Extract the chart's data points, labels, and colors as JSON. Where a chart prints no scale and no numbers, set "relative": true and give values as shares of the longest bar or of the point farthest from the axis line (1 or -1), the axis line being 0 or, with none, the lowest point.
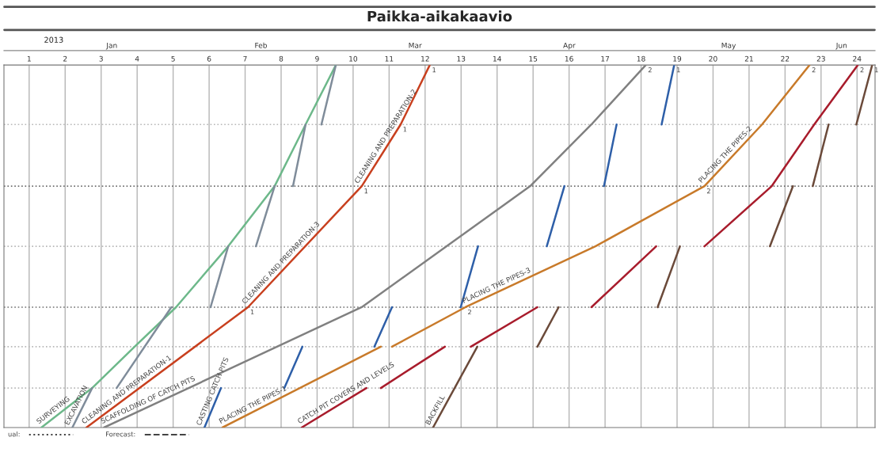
{
  "chart_data": {
    "type": "line",
    "title": "Paikka-aikakaavio",
    "relative": true,
    "legend": false,
    "grid": "x",
    "line_style": "solid",
    "xlim": [
      0.3,
      24.5
    ],
    "xticks": [
      1,
      2,
      3,
      4,
      5,
      6,
      7,
      8,
      9,
      10,
      11,
      12,
      13,
      14,
      15,
      16,
      17,
      18,
      19,
      20,
      21,
      22,
      23,
      24
    ],
    "x2lim": [
      "2012-12-26",
      "2013-06-13T12:00"
    ],
    "x2ticks": [
      {
        "value": "2013-01-16",
        "label": "Jan"
      },
      {
        "value": "2013-02-14",
        "label": "Feb"
      },
      {
        "value": "2013-03-16",
        "label": "Mar"
      },
      {
        "value": "2013-04-15",
        "label": "Apr"
      },
      {
        "value": "2013-05-16",
        "label": "May"
      },
      {
        "value": "2013-06-07",
        "label": "Jun"
      }
    ],
    "series": [
      {
        "color": "#6db88a",
        "x": [
          1.34,
          2.75,
          3.93,
          5.08,
          6.53,
          7.82,
          8.68,
          9.52
        ],
        "values": [
          0,
          0.109,
          0.223,
          0.332,
          0.5,
          0.666,
          0.836,
          1
        ]
      },
      {
        "color": "#7f8c9a",
        "x": [
          2.2,
          2.75,
          null,
          3.43,
          4.95,
          null,
          6.04,
          6.53,
          null,
          7.3,
          7.82,
          null,
          8.33,
          8.68,
          null,
          9.12,
          9.52
        ],
        "values": [
          0,
          0.109,
          null,
          0.109,
          0.332,
          null,
          0.332,
          0.5,
          null,
          0.5,
          0.666,
          null,
          0.666,
          0.836,
          null,
          0.836,
          1
        ]
      },
      {
        "color": "#c8401f",
        "x": [
          2.59,
          7.08,
          10.24,
          11.32,
          12.13
        ],
        "values": [
          0,
          0.332,
          0.666,
          0.836,
          1
        ]
      },
      {
        "color": "#808080",
        "x": [
          3.08,
          10.24,
          14.92,
          16.62,
          18.13
        ],
        "values": [
          0,
          0.332,
          0.666,
          0.836,
          1
        ]
      },
      {
        "color": "#2e5fa8",
        "x": [
          5.87,
          6.33,
          null,
          8.09,
          8.59,
          null,
          10.59,
          11.08,
          null,
          12.99,
          13.47,
          null,
          15.38,
          15.87,
          null,
          16.97,
          17.32,
          null,
          18.57,
          18.92
        ],
        "values": [
          0,
          0.109,
          null,
          0.109,
          0.223,
          null,
          0.223,
          0.332,
          null,
          0.332,
          0.5,
          null,
          0.5,
          0.666,
          null,
          0.666,
          0.836,
          null,
          0.836,
          1
        ]
      },
      {
        "color": "#c87a2a",
        "x": [
          6.37,
          10.77,
          null,
          11.08,
          13.12,
          16.73,
          19.76,
          21.36,
          22.68
        ],
        "values": [
          0,
          0.223,
          null,
          0.223,
          0.332,
          0.5,
          0.666,
          0.836,
          1
        ]
      },
      {
        "color": "#a81c2c",
        "x": [
          8.57,
          10.37,
          null,
          10.77,
          12.55,
          null,
          13.27,
          15.12,
          null,
          16.62,
          18.42,
          null,
          19.76,
          21.63,
          22.81,
          24.02
        ],
        "values": [
          0,
          0.109,
          null,
          0.109,
          0.223,
          null,
          0.223,
          0.332,
          null,
          0.332,
          0.5,
          null,
          0.5,
          0.666,
          0.836,
          1
        ]
      },
      {
        "color": "#6b4a3a",
        "x": [
          12.22,
          13.45,
          null,
          15.12,
          15.71,
          null,
          18.46,
          19.08,
          null,
          21.58,
          22.22,
          null,
          22.77,
          23.21,
          null,
          23.98,
          24.42
        ],
        "values": [
          0,
          0.223,
          null,
          0.223,
          0.332,
          null,
          0.332,
          0.5,
          null,
          0.5,
          0.666,
          null,
          0.666,
          0.836,
          null,
          0.836,
          1
        ]
      }
    ],
    "ref_lines": [
      {
        "axis": "y",
        "value": 0.109,
        "color": "#b8b8b8",
        "line_style": "dotted"
      },
      {
        "axis": "y",
        "value": 0.223,
        "color": "#b8b8b8",
        "line_style": "dotted"
      },
      {
        "axis": "y",
        "value": 0.332,
        "color": "#707070",
        "line_style": "dotted"
      },
      {
        "axis": "y",
        "value": 0.5,
        "color": "#b8b8b8",
        "line_style": "dotted"
      },
      {
        "axis": "y",
        "value": 0.666,
        "color": "#707070",
        "line_style": "dotted"
      },
      {
        "axis": "y",
        "value": 0.836,
        "color": "#b8b8b8",
        "line_style": "dotted"
      }
    ],
    "annotations": [
      "2013",
      "ual:",
      "Forecast:",
      {
        "text": "SURVEYING",
        "x": 1.34,
        "y": 0
      },
      {
        "text": "EXCAVATION",
        "x": 2.2,
        "y": 0
      },
      {
        "text": "CLEANING AND PREPARATION-1",
        "x": 2.59,
        "y": 0
      },
      {
        "text": "SCAFFOLDING OF CATCH PITS",
        "x": 3.08,
        "y": 0
      },
      {
        "text": "CASTING CATCH PITS",
        "x": 5.87,
        "y": 0
      },
      {
        "text": "PLACING THE PIPES-1",
        "x": 6.37,
        "y": 0
      },
      {
        "text": "CATCH PIT COVERS AND LEVELS",
        "x": 8.57,
        "y": 0
      },
      {
        "text": "BACKFILL",
        "x": 12.22,
        "y": 0
      },
      {
        "text": "CLEANING AND PREPARATION-3",
        "x": 7.08,
        "y": 0.332
      },
      {
        "text": "CLEANING AND PREPARATION-2",
        "x": 10.24,
        "y": 0.666
      },
      {
        "text": "PLACING THE PIPES-3",
        "x": 13.12,
        "y": 0.332
      },
      {
        "text": "PLACING THE PIPES-2",
        "x": 19.76,
        "y": 0.666
      },
      {
        "text": "1",
        "x": 7.08,
        "y": 0.332
      },
      {
        "text": "1",
        "x": 10.24,
        "y": 0.666
      },
      {
        "text": "1",
        "x": 11.32,
        "y": 0.836
      },
      {
        "text": "1",
        "x": 12.13,
        "y": 1
      },
      {
        "text": "2",
        "x": 18.13,
        "y": 1
      },
      {
        "text": "2",
        "x": 13.12,
        "y": 0.332
      },
      {
        "text": "2",
        "x": 19.76,
        "y": 0.666
      },
      {
        "text": "2",
        "x": 22.68,
        "y": 1
      },
      {
        "text": "2",
        "x": 24.02,
        "y": 1
      },
      {
        "text": "1",
        "x": 24.42,
        "y": 1
      },
      {
        "text": "1",
        "x": 18.92,
        "y": 1
      }
    ]
  }
}
